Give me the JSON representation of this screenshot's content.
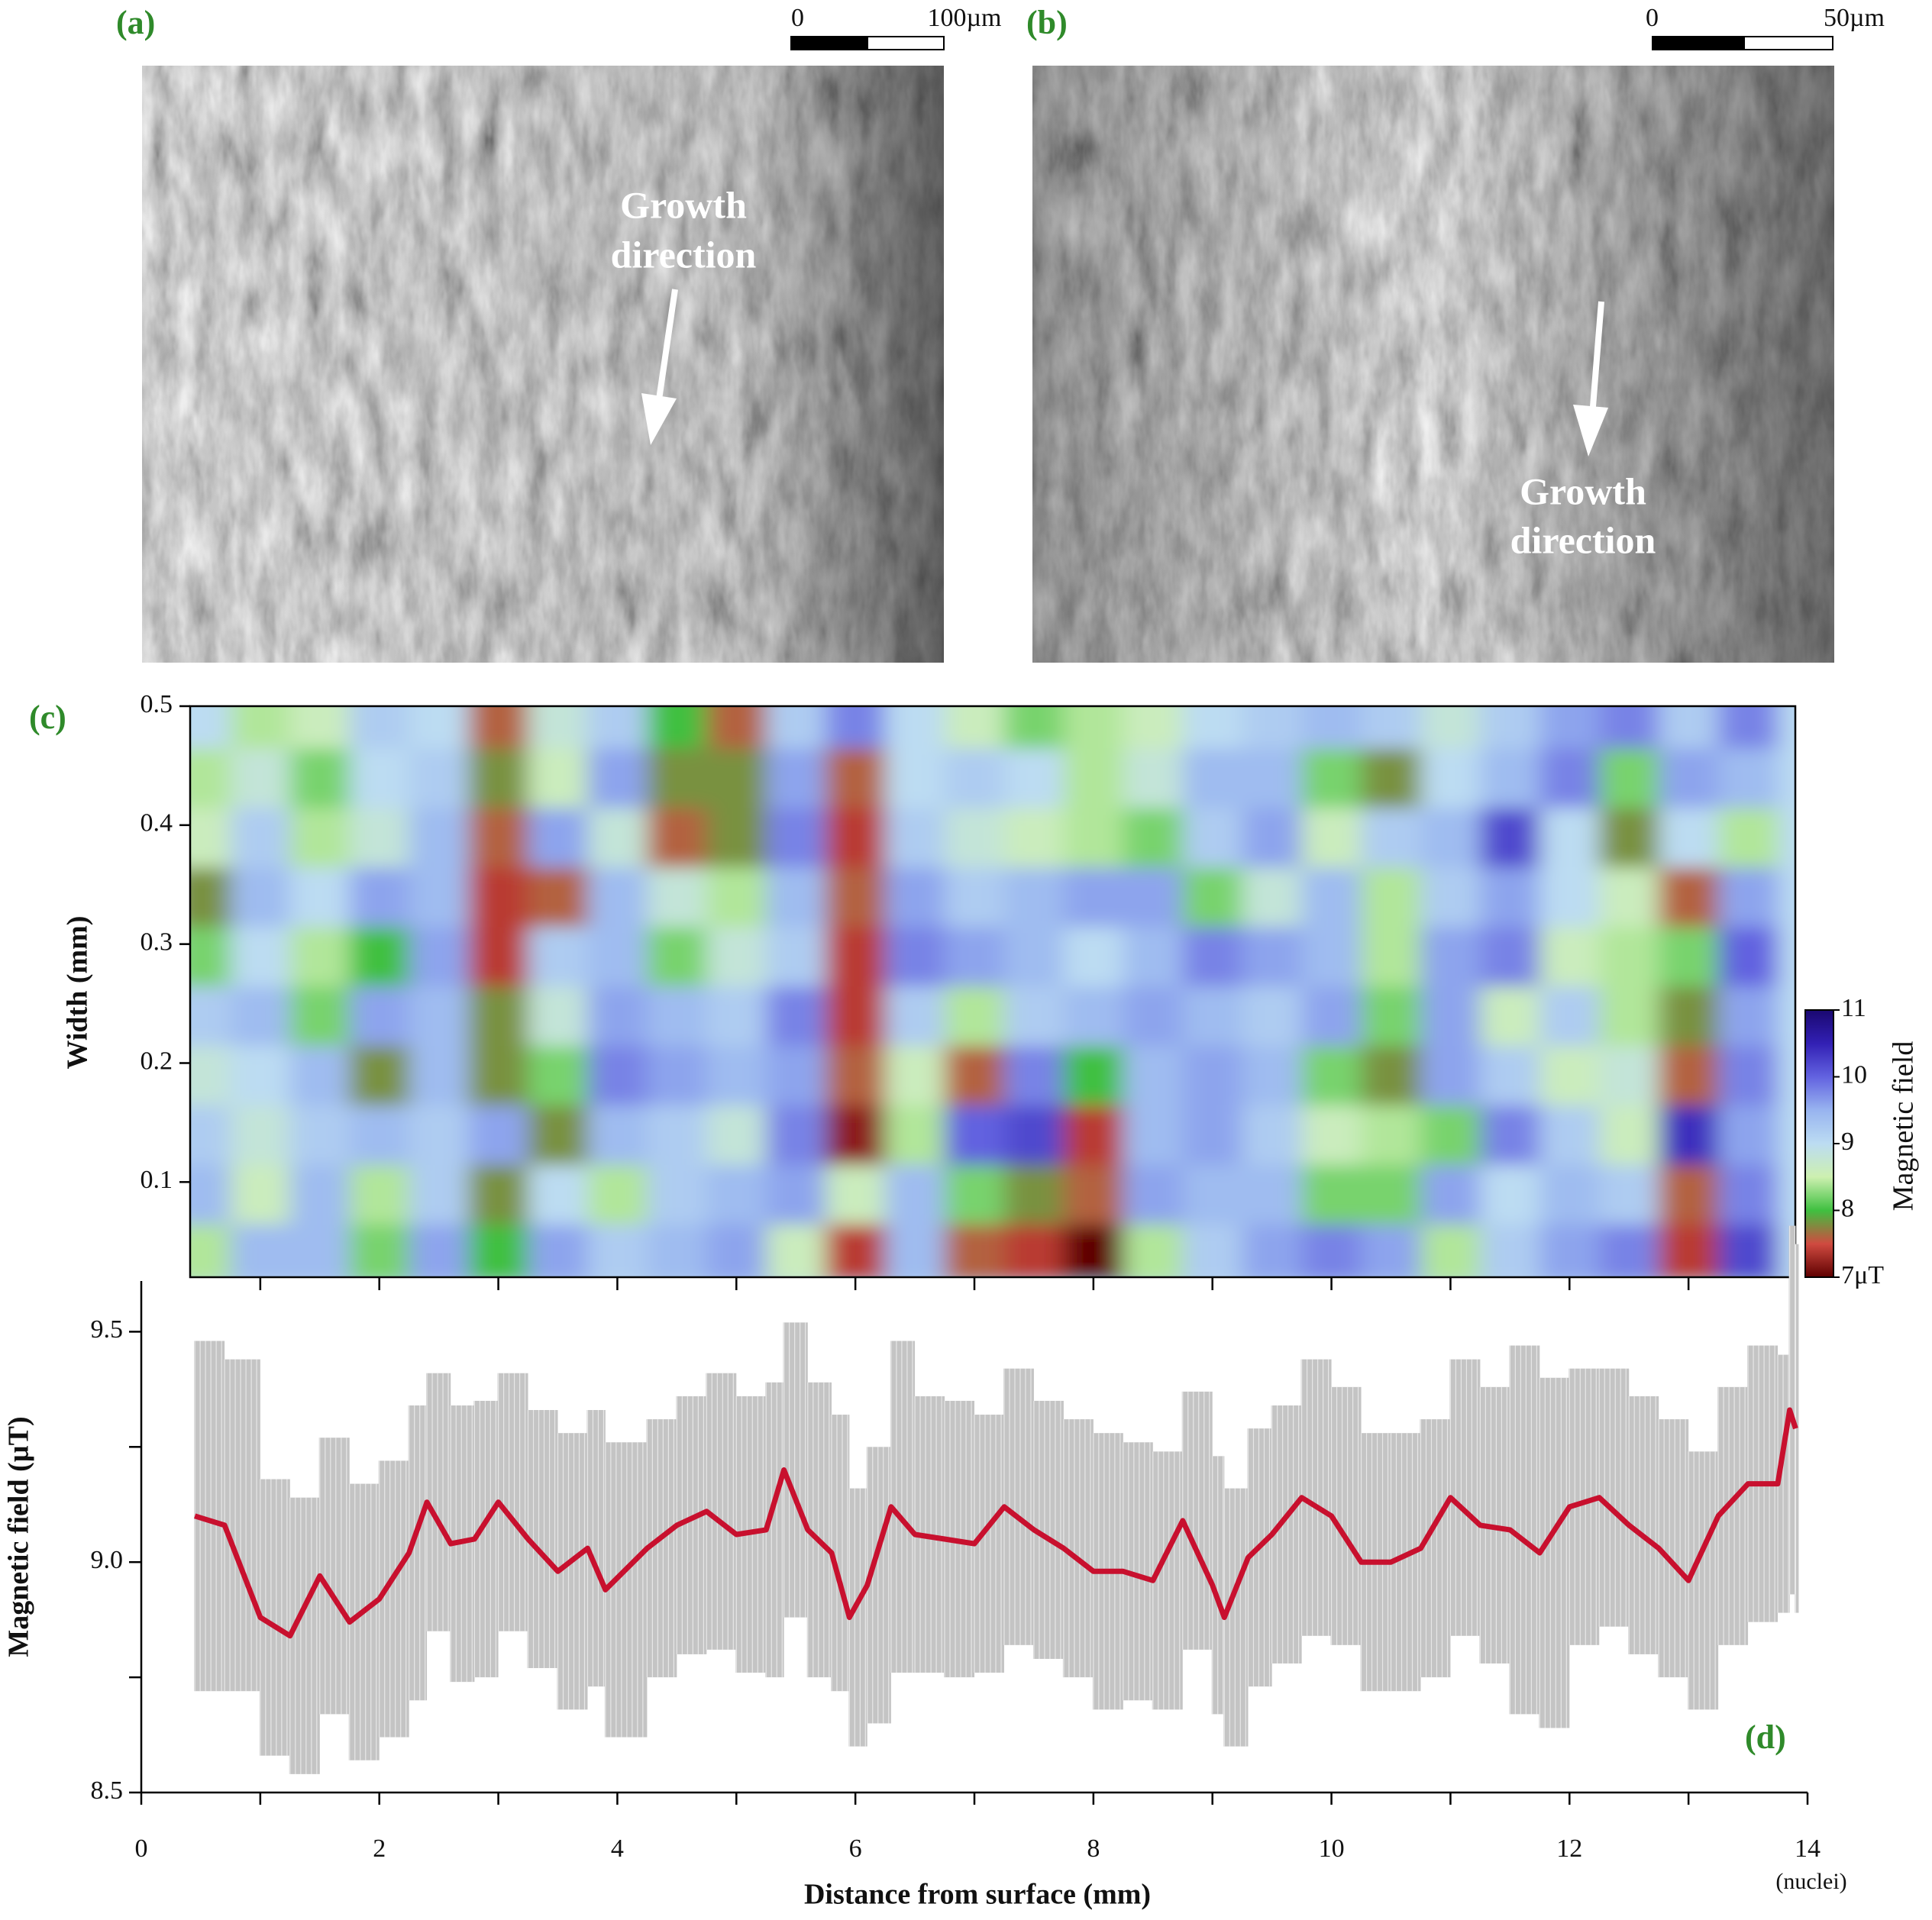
{
  "panels": {
    "a": {
      "label": "(a)",
      "scale_bar": [
        "0",
        "100µm"
      ],
      "annotation": [
        "Growth",
        "direction"
      ]
    },
    "b": {
      "label": "(b)",
      "scale_bar": [
        "0",
        "50µm"
      ],
      "annotation": [
        "Growth",
        "direction"
      ]
    }
  },
  "chart_data": [
    {
      "type": "heatmap",
      "label": "(c)",
      "ylabel": "Width (mm)",
      "x": [
        0.5,
        1,
        1.5,
        2,
        2.5,
        3,
        3.5,
        4,
        4.5,
        5,
        5.5,
        6,
        6.5,
        7,
        7.5,
        8,
        8.5,
        9,
        9.5,
        10,
        10.5,
        11,
        11.5,
        12,
        12.5,
        13,
        13.5
      ],
      "y": [
        0.04,
        0.09,
        0.14,
        0.19,
        0.24,
        0.29,
        0.34,
        0.39,
        0.44,
        0.49
      ],
      "z": [
        [
          8.4,
          9.4,
          9.4,
          8.2,
          9.6,
          8,
          9.6,
          9.2,
          9.4,
          9.6,
          8.6,
          7.4,
          9.4,
          7.6,
          7.4,
          7.0,
          8.4,
          9.2,
          9.6,
          9.8,
          9.6,
          8.4,
          9.2,
          9.6,
          9.8,
          7.4,
          10.2
        ],
        [
          9.4,
          8.6,
          9.4,
          8.4,
          9.2,
          7.8,
          9,
          8.4,
          9.2,
          9.4,
          9.6,
          8.6,
          9.4,
          8.2,
          7.8,
          7.6,
          9.6,
          9.4,
          9.4,
          8.2,
          8.2,
          9.6,
          9,
          9.4,
          9.2,
          7.6,
          9.8
        ],
        [
          9.2,
          8.8,
          9.2,
          9.4,
          9.2,
          9.6,
          7.8,
          9.4,
          9.2,
          8.8,
          9.8,
          7.2,
          8.4,
          10,
          10.2,
          7.4,
          9.4,
          9.6,
          9.2,
          8.6,
          8.4,
          8.2,
          9.8,
          9.2,
          8.6,
          10.4,
          9.6
        ],
        [
          8.8,
          9,
          9.4,
          7.8,
          9.4,
          7.8,
          8.2,
          9.8,
          9.6,
          9.4,
          9.6,
          7.6,
          8.6,
          7.6,
          9.8,
          8,
          9.4,
          9.6,
          9.4,
          8.2,
          7.8,
          9.6,
          9.2,
          8.6,
          8.8,
          7.6,
          9.8
        ],
        [
          9.2,
          9.4,
          8.2,
          9.6,
          9.4,
          7.8,
          8.8,
          9.6,
          9.4,
          9.2,
          9.8,
          7.4,
          9.2,
          8.4,
          9.2,
          9.4,
          9.6,
          9.4,
          9.2,
          9.6,
          8.2,
          9.6,
          8.6,
          9.2,
          8.4,
          7.8,
          9.6
        ],
        [
          8.2,
          9,
          8.4,
          8,
          9.6,
          7.4,
          9.2,
          9.4,
          8.2,
          8.8,
          9.2,
          7.4,
          9.8,
          9.6,
          9.4,
          9,
          9.4,
          9.8,
          9.6,
          9.4,
          8.4,
          9.6,
          9.8,
          8.6,
          8.4,
          8.2,
          10
        ],
        [
          7.8,
          9.4,
          9,
          9.6,
          9.4,
          7.4,
          7.6,
          9.4,
          8.8,
          8.4,
          9.4,
          7.6,
          9.6,
          9.2,
          9.4,
          9.6,
          9.6,
          8.2,
          8.8,
          9.4,
          8.4,
          9.2,
          9.6,
          9,
          8.6,
          7.6,
          9.6
        ],
        [
          8.6,
          9.2,
          8.4,
          8.8,
          9.4,
          7.6,
          9.6,
          8.8,
          7.6,
          7.8,
          9.8,
          7.4,
          9.2,
          8.8,
          8.6,
          8.4,
          8.2,
          9.2,
          9.6,
          8.6,
          9.2,
          9.4,
          10.2,
          9,
          7.8,
          9,
          8.4
        ],
        [
          8.4,
          8.8,
          8.2,
          9,
          9.2,
          7.8,
          8.6,
          9.6,
          7.8,
          7.8,
          9.6,
          7.6,
          9,
          9.2,
          9,
          8.4,
          8.8,
          9.4,
          9.4,
          8.2,
          7.8,
          9,
          9.4,
          9.8,
          8.2,
          9.6,
          9.4
        ],
        [
          9,
          8.4,
          8.6,
          9.2,
          9,
          7.6,
          8.8,
          9.2,
          8.0,
          7.6,
          9.2,
          9.8,
          9,
          8.6,
          8.2,
          8.4,
          8.6,
          9,
          9.2,
          9.4,
          9.2,
          8.8,
          9.2,
          9.6,
          9.8,
          9.2,
          9.8
        ]
      ],
      "xlim": [
        0.41,
        13.89
      ],
      "ylim": [
        0.02,
        0.5
      ],
      "yticks": [
        0.1,
        0.2,
        0.3,
        0.4,
        0.5
      ],
      "colorbar": {
        "label": "Magnetic field",
        "lim": [
          7,
          11
        ],
        "ticks": [
          {
            "value": 7,
            "label": "7μT"
          },
          8,
          9,
          10,
          11
        ],
        "colors": [
          "#5e0000",
          "#d04a40",
          "#3fc040",
          "#cdf0b0",
          "#bcdcf2",
          "#98b4f0",
          "#6262e0",
          "#3220b4",
          "#1a0870"
        ]
      }
    },
    {
      "type": "line",
      "label": "(d)",
      "xlabel": "Distance from surface (mm)",
      "ylabel": "Magnetic field (µT)",
      "annotation": "(nuclei)",
      "x": [
        0.45,
        0.7,
        1.0,
        1.25,
        1.5,
        1.75,
        2.0,
        2.25,
        2.4,
        2.6,
        2.8,
        3.0,
        3.25,
        3.5,
        3.75,
        3.9,
        4.25,
        4.5,
        4.75,
        5.0,
        5.25,
        5.4,
        5.6,
        5.8,
        5.95,
        6.1,
        6.3,
        6.5,
        6.75,
        7.0,
        7.25,
        7.5,
        7.75,
        8.0,
        8.25,
        8.5,
        8.75,
        9.0,
        9.1,
        9.3,
        9.5,
        9.75,
        10.0,
        10.25,
        10.5,
        10.75,
        11.0,
        11.25,
        11.5,
        11.75,
        12.0,
        12.25,
        12.5,
        12.75,
        13.0,
        13.25,
        13.5,
        13.75,
        13.85,
        13.9
      ],
      "series": [
        {
          "color": "#c8102e",
          "error_color": "#c4c4c4",
          "values": [
            9.1,
            9.08,
            8.88,
            8.84,
            8.97,
            8.87,
            8.92,
            9.02,
            9.13,
            9.04,
            9.05,
            9.13,
            9.05,
            8.98,
            9.03,
            8.94,
            9.03,
            9.08,
            9.11,
            9.06,
            9.07,
            9.2,
            9.07,
            9.02,
            8.88,
            8.95,
            9.12,
            9.06,
            9.05,
            9.04,
            9.12,
            9.07,
            9.03,
            8.98,
            8.98,
            8.96,
            9.09,
            8.95,
            8.88,
            9.01,
            9.06,
            9.14,
            9.1,
            9.0,
            9.0,
            9.03,
            9.14,
            9.08,
            9.07,
            9.02,
            9.12,
            9.14,
            9.08,
            9.03,
            8.96,
            9.1,
            9.17,
            9.17,
            9.33,
            9.29
          ],
          "error": [
            0.38,
            0.36,
            0.3,
            0.3,
            0.3,
            0.3,
            0.3,
            0.32,
            0.28,
            0.3,
            0.3,
            0.28,
            0.28,
            0.3,
            0.3,
            0.32,
            0.28,
            0.28,
            0.3,
            0.3,
            0.32,
            0.32,
            0.32,
            0.3,
            0.28,
            0.3,
            0.36,
            0.3,
            0.3,
            0.28,
            0.3,
            0.28,
            0.28,
            0.3,
            0.28,
            0.28,
            0.28,
            0.28,
            0.28,
            0.28,
            0.28,
            0.3,
            0.28,
            0.28,
            0.28,
            0.28,
            0.3,
            0.3,
            0.4,
            0.38,
            0.3,
            0.28,
            0.28,
            0.28,
            0.28,
            0.28,
            0.3,
            0.28,
            0.4,
            0.4
          ]
        }
      ],
      "xlim": [
        0,
        14
      ],
      "xticks": [
        0,
        2,
        4,
        6,
        8,
        10,
        12,
        14
      ],
      "xminor": [
        1,
        3,
        5,
        7,
        9,
        11,
        13
      ],
      "ylim": [
        8.5,
        9.61
      ],
      "yticks": [
        8.5,
        {
          "value": 9,
          "label": "9.0"
        },
        9.5
      ],
      "yminor": [
        8.75,
        9.25
      ]
    }
  ]
}
